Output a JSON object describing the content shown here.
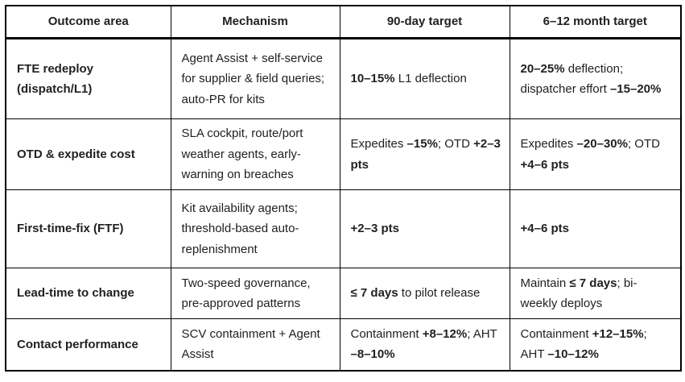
{
  "colors": {
    "text": "#202124",
    "border": "#000000",
    "background": "#ffffff"
  },
  "table": {
    "headers": {
      "outcome_area": "Outcome area",
      "mechanism": "Mechanism",
      "target_90": "90-day target",
      "target_6_12": "6–12 month target"
    },
    "rows": [
      {
        "outcome": "FTE redeploy (dispatch/L1)",
        "mechanism": "Agent Assist + self-service for supplier & field queries; auto-PR for kits",
        "target_90": [
          {
            "t": "10–15%",
            "b": true
          },
          {
            "t": " L1 deflection",
            "b": false
          }
        ],
        "target_6_12": [
          {
            "t": "20–25%",
            "b": true
          },
          {
            "t": " deflection; dispatcher effort ",
            "b": false
          },
          {
            "t": "–15–20%",
            "b": true
          }
        ]
      },
      {
        "outcome": "OTD & expedite cost",
        "mechanism": "SLA cockpit, route/port weather agents, early-warning on breaches",
        "target_90": [
          {
            "t": "Expedites ",
            "b": false
          },
          {
            "t": "–15%",
            "b": true
          },
          {
            "t": "; OTD ",
            "b": false
          },
          {
            "t": "+2–3 pts",
            "b": true
          }
        ],
        "target_6_12": [
          {
            "t": "Expedites ",
            "b": false
          },
          {
            "t": "–20–30%",
            "b": true
          },
          {
            "t": "; OTD ",
            "b": false
          },
          {
            "t": "+4–6 pts",
            "b": true
          }
        ]
      },
      {
        "outcome": "First-time-fix (FTF)",
        "mechanism": "Kit availability agents; threshold-based auto-replenishment",
        "target_90": [
          {
            "t": "+2–3 pts",
            "b": true
          }
        ],
        "target_6_12": [
          {
            "t": "+4–6 pts",
            "b": true
          }
        ]
      },
      {
        "outcome": "Lead-time to change",
        "mechanism": "Two-speed governance, pre-approved patterns",
        "target_90": [
          {
            "t": "≤ 7 days",
            "b": true
          },
          {
            "t": " to pilot release",
            "b": false
          }
        ],
        "target_6_12": [
          {
            "t": "Maintain ",
            "b": false
          },
          {
            "t": "≤ 7 days",
            "b": true
          },
          {
            "t": "; bi-weekly deploys",
            "b": false
          }
        ]
      },
      {
        "outcome": "Contact performance",
        "mechanism": "SCV containment + Agent Assist",
        "target_90": [
          {
            "t": "Containment ",
            "b": false
          },
          {
            "t": "+8–12%",
            "b": true
          },
          {
            "t": "; AHT ",
            "b": false
          },
          {
            "t": "–8–10%",
            "b": true
          }
        ],
        "target_6_12": [
          {
            "t": "Containment ",
            "b": false
          },
          {
            "t": "+12–15%",
            "b": true
          },
          {
            "t": "; AHT ",
            "b": false
          },
          {
            "t": "–10–12%",
            "b": true
          }
        ]
      }
    ]
  }
}
